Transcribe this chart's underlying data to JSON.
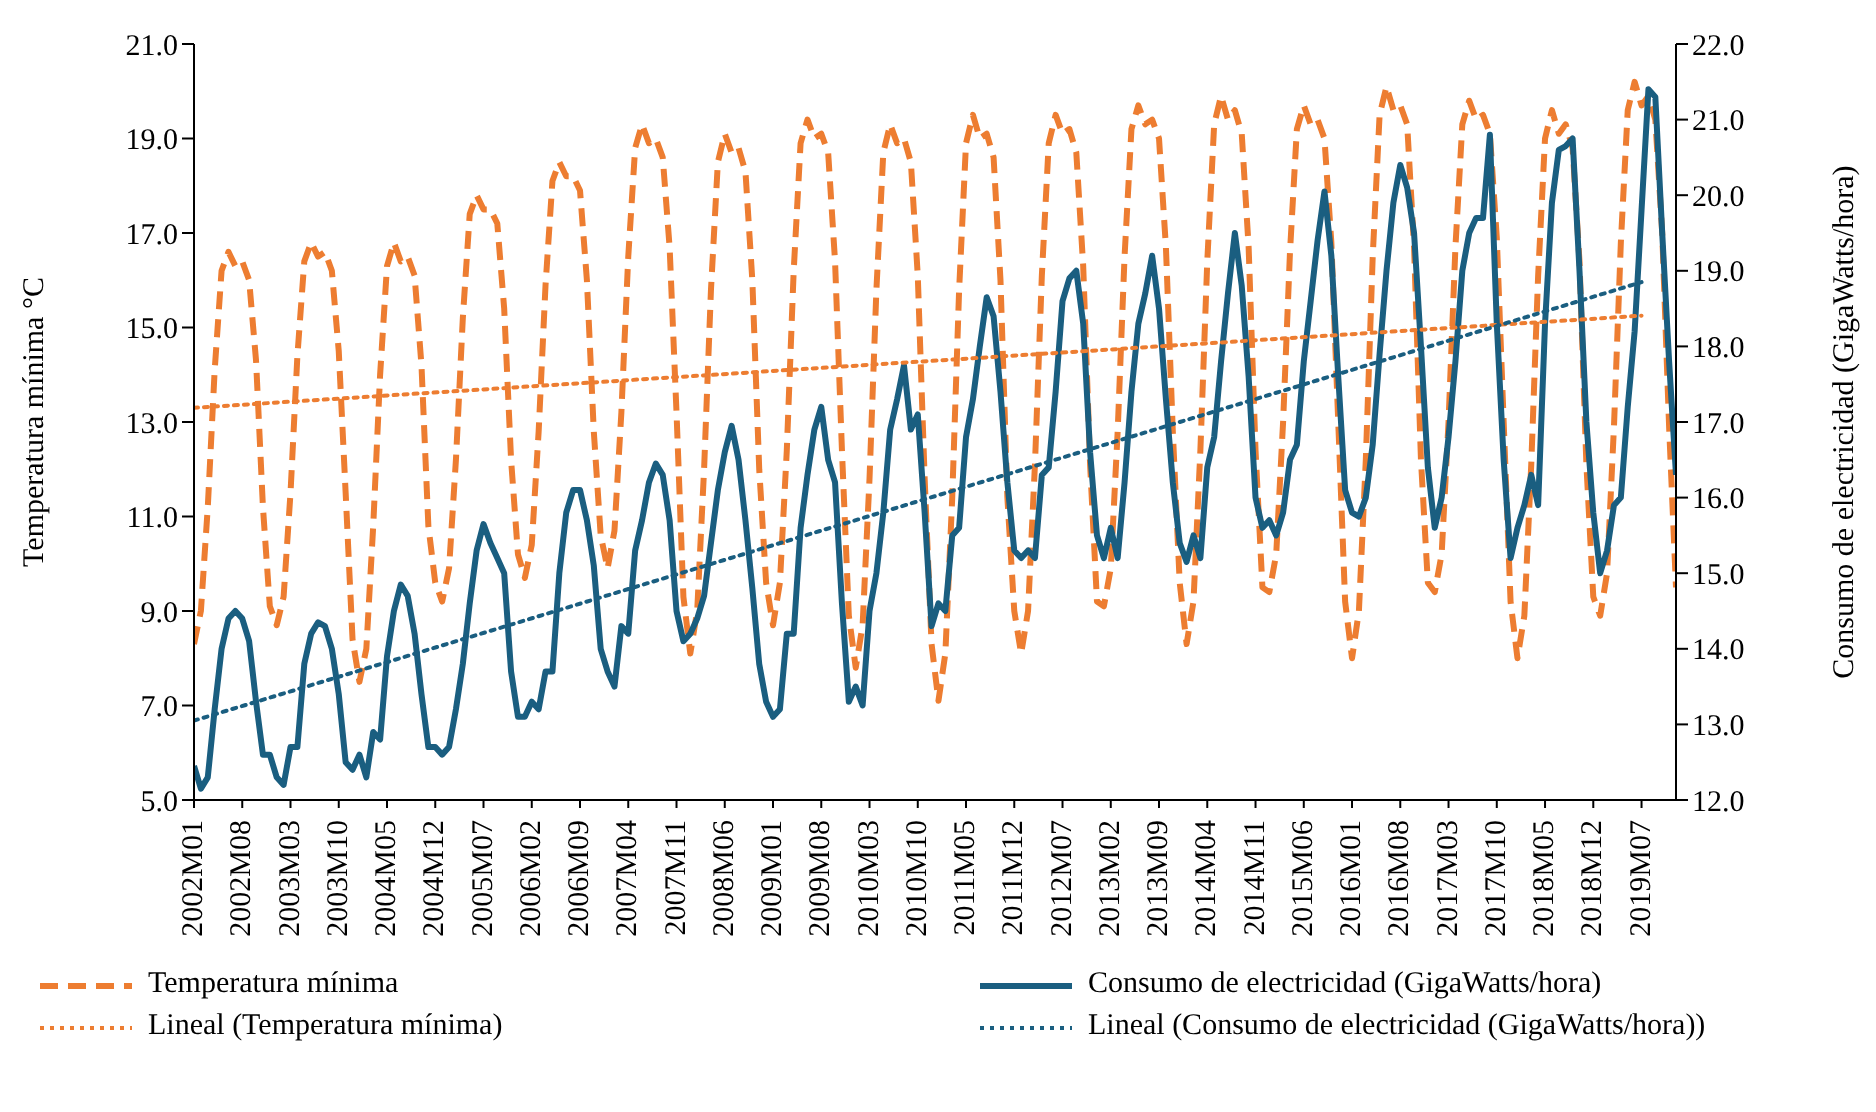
{
  "chart_data": {
    "type": "line",
    "ylabel": "Temperatura mínima °C",
    "y2label": "Consumo de electricidad (GigaWatts/hora)",
    "categories": [
      "2002M01",
      null,
      null,
      null,
      null,
      null,
      null,
      "2002M08",
      null,
      null,
      null,
      null,
      null,
      null,
      "2003M03",
      null,
      null,
      null,
      null,
      null,
      null,
      "2003M10",
      null,
      null,
      null,
      null,
      null,
      null,
      "2004M05",
      null,
      null,
      null,
      null,
      null,
      null,
      "2004M12",
      null,
      null,
      null,
      null,
      null,
      null,
      "2005M07",
      null,
      null,
      null,
      null,
      null,
      null,
      "2006M02",
      null,
      null,
      null,
      null,
      null,
      null,
      "2006M09",
      null,
      null,
      null,
      null,
      null,
      null,
      "2007M04",
      null,
      null,
      null,
      null,
      null,
      null,
      "2007M11",
      null,
      null,
      null,
      null,
      null,
      null,
      "2008M06",
      null,
      null,
      null,
      null,
      null,
      null,
      "2009M01",
      null,
      null,
      null,
      null,
      null,
      null,
      "2009M08",
      null,
      null,
      null,
      null,
      null,
      null,
      "2010M03",
      null,
      null,
      null,
      null,
      null,
      null,
      "2010M10",
      null,
      null,
      null,
      null,
      null,
      null,
      "2011M05",
      null,
      null,
      null,
      null,
      null,
      null,
      "2011M12",
      null,
      null,
      null,
      null,
      null,
      null,
      "2012M07",
      null,
      null,
      null,
      null,
      null,
      null,
      "2013M02",
      null,
      null,
      null,
      null,
      null,
      null,
      "2013M09",
      null,
      null,
      null,
      null,
      null,
      null,
      "2014M04",
      null,
      null,
      null,
      null,
      null,
      null,
      "2014M11",
      null,
      null,
      null,
      null,
      null,
      null,
      "2015M06",
      null,
      null,
      null,
      null,
      null,
      null,
      "2016M01",
      null,
      null,
      null,
      null,
      null,
      null,
      "2016M08",
      null,
      null,
      null,
      null,
      null,
      null,
      "2017M03",
      null,
      null,
      null,
      null,
      null,
      null,
      "2017M10",
      null,
      null,
      null,
      null,
      null,
      null,
      "2018M05",
      null,
      null,
      null,
      null,
      null,
      null,
      "2018M12",
      null,
      null,
      null,
      null,
      null,
      null,
      "2019M07",
      null,
      null,
      null,
      null,
      null
    ],
    "ylim": [
      5,
      21
    ],
    "yticks": [
      {
        "value": 5,
        "label": "5.0"
      },
      {
        "value": 7,
        "label": "7.0"
      },
      {
        "value": 9,
        "label": "9.0"
      },
      {
        "value": 11,
        "label": "11.0"
      },
      {
        "value": 13,
        "label": "13.0"
      },
      {
        "value": 15,
        "label": "15.0"
      },
      {
        "value": 17,
        "label": "17.0"
      },
      {
        "value": 19,
        "label": "19.0"
      },
      {
        "value": 21,
        "label": "21.0"
      }
    ],
    "y2lim": [
      12,
      22
    ],
    "y2ticks": [
      {
        "value": 12,
        "label": "12.0"
      },
      {
        "value": 13,
        "label": "13.0"
      },
      {
        "value": 14,
        "label": "14.0"
      },
      {
        "value": 15,
        "label": "15.0"
      },
      {
        "value": 16,
        "label": "16.0"
      },
      {
        "value": 17,
        "label": "17.0"
      },
      {
        "value": 18,
        "label": "18.0"
      },
      {
        "value": 19,
        "label": "19.0"
      },
      {
        "value": 20,
        "label": "20.0"
      },
      {
        "value": 21,
        "label": "21.0"
      },
      {
        "value": 22,
        "label": "22.0"
      }
    ],
    "legend": "bottom",
    "marker": "none",
    "series": [
      {
        "name": "Temperatura mínima",
        "type": "line",
        "color": "#ed7d31",
        "line_style": "dashed",
        "values": [
          8.3,
          9.0,
          11.2,
          14.1,
          16.2,
          16.6,
          16.3,
          16.4,
          16.0,
          14.3,
          11.2,
          9.1,
          8.7,
          9.3,
          11.5,
          14.4,
          16.4,
          16.8,
          16.5,
          16.6,
          16.2,
          14.5,
          11.5,
          8.4,
          7.5,
          8.2,
          10.8,
          14.0,
          16.3,
          16.8,
          16.4,
          16.5,
          16.1,
          14.2,
          10.8,
          9.6,
          9.2,
          9.9,
          12.2,
          15.2,
          17.4,
          17.8,
          17.5,
          17.5,
          17.2,
          15.4,
          12.2,
          10.2,
          9.7,
          10.4,
          12.8,
          15.9,
          18.1,
          18.5,
          18.2,
          18.2,
          17.9,
          16.0,
          12.8,
          10.6,
          9.9,
          10.7,
          13.2,
          16.5,
          18.8,
          19.3,
          18.9,
          19.0,
          18.6,
          16.7,
          13.2,
          9.3,
          8.1,
          9.0,
          12.0,
          15.8,
          18.5,
          19.1,
          18.7,
          18.8,
          18.3,
          16.0,
          12.0,
          9.6,
          8.7,
          9.6,
          12.4,
          16.2,
          18.9,
          19.4,
          19.0,
          19.1,
          18.7,
          16.4,
          12.4,
          8.9,
          7.8,
          8.7,
          11.8,
          15.8,
          18.7,
          19.3,
          18.9,
          19.0,
          18.5,
          16.1,
          11.8,
          8.3,
          7.1,
          8.1,
          11.4,
          15.8,
          18.9,
          19.5,
          19.0,
          19.1,
          18.6,
          16.0,
          11.4,
          9.0,
          8.1,
          9.0,
          12.1,
          16.1,
          18.9,
          19.5,
          19.1,
          19.2,
          18.7,
          16.3,
          12.1,
          9.2,
          9.1,
          9.9,
          12.8,
          16.5,
          19.2,
          19.7,
          19.3,
          19.4,
          19.0,
          16.7,
          12.8,
          9.6,
          8.3,
          9.2,
          12.4,
          16.4,
          19.3,
          19.9,
          19.4,
          19.6,
          19.1,
          16.7,
          12.4,
          9.5,
          9.4,
          10.2,
          13.0,
          16.6,
          19.2,
          19.7,
          19.3,
          19.4,
          19.0,
          16.8,
          13.0,
          9.2,
          8.0,
          9.0,
          12.2,
          16.5,
          19.5,
          20.1,
          19.6,
          19.7,
          19.3,
          16.7,
          12.2,
          9.6,
          9.4,
          10.2,
          13.0,
          16.7,
          19.3,
          19.8,
          19.4,
          19.5,
          19.1,
          16.9,
          13.0,
          9.2,
          8.0,
          8.9,
          12.1,
          16.1,
          19.0,
          19.6,
          19.1,
          19.3,
          18.8,
          16.4,
          12.1,
          9.3,
          8.9,
          9.8,
          12.9,
          16.8,
          19.6,
          20.2,
          19.7,
          19.9,
          19.4,
          17.0,
          12.9,
          9.5
        ]
      },
      {
        "name": "Consumo de electricidad (GigaWatts/hora)",
        "type": "line",
        "axis": "y2",
        "color": "#1a5e80",
        "line_style": "solid",
        "values": [
          12.45,
          12.15,
          12.3,
          13.2,
          14.0,
          14.4,
          14.5,
          14.4,
          14.1,
          13.3,
          12.6,
          12.6,
          12.3,
          12.2,
          12.7,
          12.7,
          13.8,
          14.2,
          14.35,
          14.3,
          14.0,
          13.4,
          12.5,
          12.4,
          12.6,
          12.3,
          12.9,
          12.8,
          13.9,
          14.5,
          14.85,
          14.7,
          14.2,
          13.4,
          12.7,
          12.7,
          12.6,
          12.7,
          13.2,
          13.8,
          14.6,
          15.3,
          15.65,
          15.4,
          15.2,
          15.0,
          13.7,
          13.1,
          13.1,
          13.3,
          13.2,
          13.7,
          13.7,
          15.0,
          15.8,
          16.1,
          16.1,
          15.7,
          15.1,
          14.0,
          13.7,
          13.5,
          14.3,
          14.2,
          15.3,
          15.7,
          16.2,
          16.45,
          16.3,
          15.7,
          14.5,
          14.1,
          14.2,
          14.4,
          14.7,
          15.4,
          16.1,
          16.6,
          16.95,
          16.5,
          15.7,
          14.8,
          13.8,
          13.3,
          13.1,
          13.2,
          14.2,
          14.2,
          15.6,
          16.3,
          16.9,
          17.2,
          16.5,
          16.2,
          14.6,
          13.3,
          13.5,
          13.25,
          14.5,
          15.0,
          15.8,
          16.9,
          17.3,
          17.75,
          16.9,
          17.1,
          15.8,
          14.3,
          14.6,
          14.5,
          15.5,
          15.6,
          16.8,
          17.3,
          18.0,
          18.65,
          18.4,
          17.4,
          16.2,
          15.3,
          15.2,
          15.3,
          15.2,
          16.3,
          16.4,
          17.4,
          18.6,
          18.9,
          19.0,
          18.3,
          16.6,
          15.5,
          15.2,
          15.6,
          15.2,
          16.2,
          17.4,
          18.3,
          18.7,
          19.2,
          18.5,
          17.3,
          16.2,
          15.4,
          15.15,
          15.5,
          15.2,
          16.4,
          16.8,
          17.8,
          18.7,
          19.5,
          18.8,
          17.6,
          16.0,
          15.6,
          15.7,
          15.5,
          15.8,
          16.5,
          16.7,
          17.8,
          18.6,
          19.4,
          20.05,
          19.2,
          17.6,
          16.1,
          15.8,
          15.75,
          16.0,
          16.7,
          17.9,
          19.0,
          19.9,
          20.4,
          20.1,
          19.5,
          18.0,
          16.4,
          15.6,
          16.0,
          16.8,
          17.8,
          19.0,
          19.5,
          19.7,
          19.7,
          20.8,
          18.3,
          16.5,
          15.2,
          15.6,
          15.9,
          16.3,
          15.9,
          18.3,
          19.9,
          20.6,
          20.65,
          20.75,
          19.0,
          17.0,
          15.8,
          15.0,
          15.3,
          15.9,
          16.0,
          17.2,
          18.2,
          19.8,
          21.4,
          21.3,
          19.5,
          17.8,
          16.3
        ]
      },
      {
        "name": "Lineal (Temperatura mínima)",
        "type": "line",
        "color": "#ed7d31",
        "line_style": "dotted",
        "x": [
          "2002M01",
          "2019M07"
        ],
        "values": [
          13.3,
          15.25
        ]
      },
      {
        "name": "Lineal (Consumo de electricidad (GigaWatts/hora))",
        "type": "line",
        "axis": "y2",
        "color": "#1a5e80",
        "line_style": "dotted",
        "x": [
          "2002M01",
          "2019M07"
        ],
        "values": [
          13.05,
          18.85
        ]
      }
    ]
  }
}
